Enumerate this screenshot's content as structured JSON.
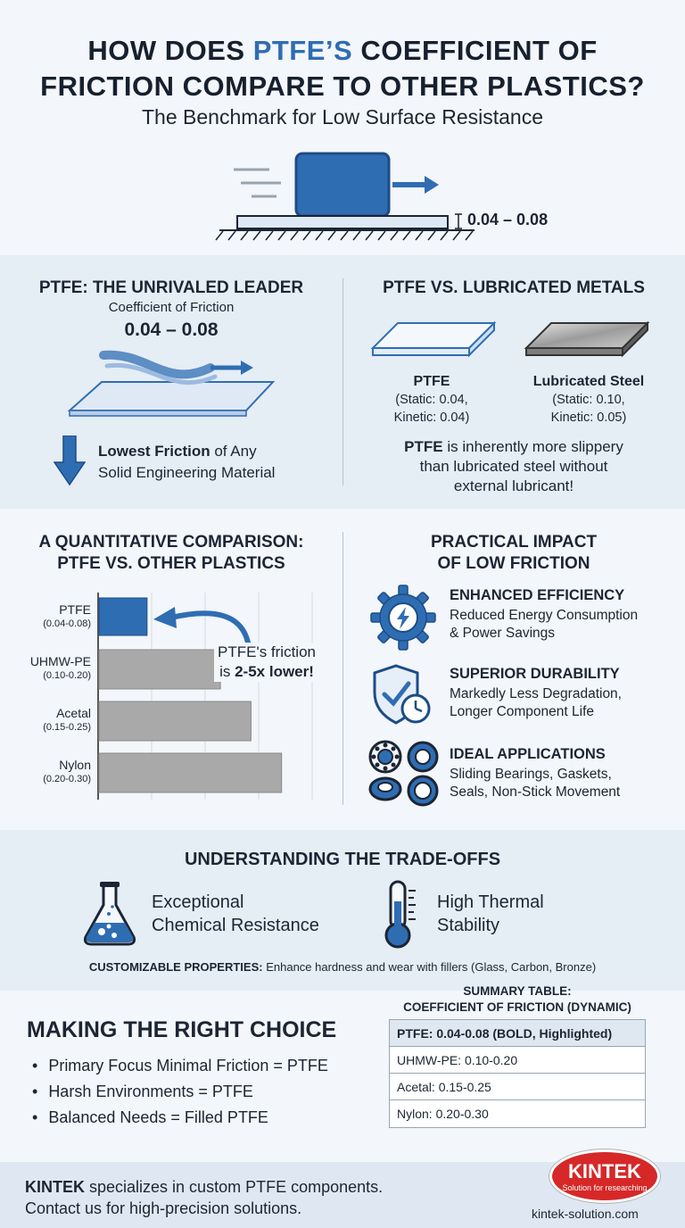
{
  "header": {
    "title_line1_pre": "HOW DOES ",
    "title_line1_hl": "PTFE’S",
    "title_line1_post": " COEFFICIENT OF",
    "title_line2": "FRICTION COMPARE TO OTHER PLASTICS?",
    "subtitle": "The Benchmark for Low Surface Resistance",
    "hero_range": "0.04 – 0.08"
  },
  "leader": {
    "heading": "PTFE: THE UNRIVALED LEADER",
    "cof_label": "Coefficient of Friction",
    "cof_value": "0.04 – 0.08",
    "lowest_bold": "Lowest Friction",
    "lowest_rest": " of Any",
    "lowest_line2": "Solid Engineering Material"
  },
  "metals": {
    "heading": "PTFE VS. LUBRICATED METALS",
    "ptfe_name": "PTFE",
    "ptfe_static": "(Static: 0.04,",
    "ptfe_kinetic": "Kinetic: 0.04)",
    "steel_name": "Lubricated Steel",
    "steel_static": "(Static: 0.10,",
    "steel_kinetic": "Kinetic: 0.05)",
    "note_bold": "PTFE",
    "note_line1": " is inherently more slippery",
    "note_line2": "than lubricated steel without",
    "note_line3": "external lubricant!"
  },
  "comparison": {
    "heading_line1": "A QUANTITATIVE COMPARISON:",
    "heading_line2": "PTFE VS. OTHER PLASTICS",
    "callout_line1": "PTFE's friction",
    "callout_pre": "is ",
    "callout_bold": "2-5x lower!"
  },
  "chart_data": {
    "type": "bar",
    "orientation": "horizontal",
    "categories": [
      "PTFE",
      "UHMW-PE",
      "Acetal",
      "Nylon"
    ],
    "range_labels": [
      "(0.04-0.08)",
      "(0.10-0.20)",
      "(0.15-0.25)",
      "(0.20-0.30)"
    ],
    "values": [
      0.08,
      0.2,
      0.25,
      0.3
    ],
    "xlim": [
      0,
      0.35
    ],
    "colors": [
      "#2f6db3",
      "#a9a9a9",
      "#a9a9a9",
      "#a9a9a9"
    ],
    "grid": true
  },
  "impact": {
    "heading_line1": "PRACTICAL IMPACT",
    "heading_line2": "OF LOW FRICTION",
    "items": [
      {
        "icon": "gear-lightning-icon",
        "title": "ENHANCED EFFICIENCY",
        "line1": "Reduced Energy Consumption",
        "line2": "& Power Savings"
      },
      {
        "icon": "shield-check-clock-icon",
        "title": "SUPERIOR DURABILITY",
        "line1": "Markedly Less Degradation,",
        "line2": "Longer Component Life"
      },
      {
        "icon": "bearings-seals-icon",
        "title": "IDEAL APPLICATIONS",
        "line1": "Sliding Bearings, Gaskets,",
        "line2": "Seals, Non-Stick Movement"
      }
    ]
  },
  "tradeoffs": {
    "heading": "UNDERSTANDING THE TRADE-OFFS",
    "chem_line1": "Exceptional",
    "chem_line2": "Chemical Resistance",
    "thermal_line1": "High Thermal",
    "thermal_line2": "Stability",
    "custom_bold": "CUSTOMIZABLE PROPERTIES:",
    "custom_rest": " Enhance hardness and wear with fillers (Glass, Carbon, Bronze)"
  },
  "choice": {
    "heading": "MAKING THE RIGHT CHOICE",
    "items": [
      "Primary Focus Minimal Friction = PTFE",
      "Harsh Environments = PTFE",
      "Balanced Needs = Filled PTFE"
    ]
  },
  "summary": {
    "heading_line1": "SUMMARY TABLE:",
    "heading_line2": "COEFFICIENT OF FRICTION (DYNAMIC)",
    "rows": [
      "PTFE: 0.04-0.08 (BOLD, Highlighted)",
      "UHMW-PE: 0.10-0.20",
      "Acetal: 0.15-0.25",
      "Nylon: 0.20-0.30"
    ]
  },
  "footer": {
    "brand_bold": "KINTEK",
    "line1_rest": " specializes in custom PTFE components.",
    "line2": "Contact us for high-precision solutions.",
    "logo_text": "KINTEK",
    "logo_tagline": "Solution for researching",
    "url": "kintek-solution.com"
  },
  "colors": {
    "accent": "#2f6db3",
    "dark": "#16202e",
    "logo_red": "#d62828"
  }
}
